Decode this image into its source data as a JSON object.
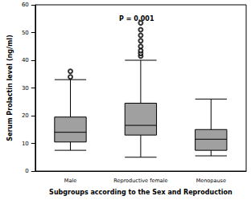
{
  "chart_data": {
    "type": "boxplot",
    "annotation": "P = 0.001",
    "x_label": "Subgroups according to the Sex and Reproduction",
    "y_label": "Serum Prolactin level (ng/ml)",
    "categories": [
      "Male",
      "Reproductive female",
      "Menopause"
    ],
    "values": [
      [
        7.5,
        10.5,
        14,
        19.5,
        33
      ],
      [
        5,
        13,
        16.5,
        24.5,
        40
      ],
      [
        5.5,
        7.5,
        11.5,
        15,
        26
      ]
    ],
    "outliers": [
      [
        34,
        36
      ],
      [
        41.5,
        42.5,
        43.5,
        45,
        47,
        49,
        51,
        53.5
      ],
      []
    ],
    "color": "#a0a0a0",
    "marker": "open circle",
    "ylim": [
      0,
      60
    ],
    "yticks": [
      0,
      10,
      20,
      30,
      40,
      50,
      60
    ],
    "grid": false
  }
}
